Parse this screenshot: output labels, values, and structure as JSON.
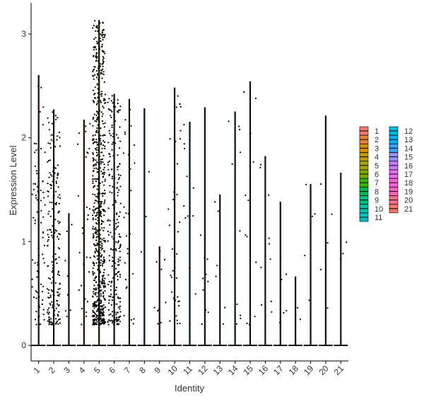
{
  "chart_data": {
    "type": "violin",
    "xlabel": "Identity",
    "ylabel": "Expression Level",
    "ylim": [
      -0.15,
      3.3
    ],
    "yticks": [
      0,
      1,
      2,
      3
    ],
    "grid": false,
    "legend_placement": "right",
    "categories": [
      "1",
      "2",
      "3",
      "4",
      "5",
      "6",
      "7",
      "8",
      "9",
      "10",
      "11",
      "12",
      "13",
      "14",
      "15",
      "16",
      "17",
      "18",
      "19",
      "20",
      "21"
    ],
    "max_expression": [
      2.6,
      2.27,
      1.27,
      2.17,
      3.13,
      2.42,
      2.37,
      2.28,
      0.95,
      2.48,
      2.15,
      2.29,
      1.45,
      2.25,
      2.54,
      1.82,
      1.38,
      0.66,
      1.55,
      2.21,
      1.66
    ],
    "expressing_cells": [
      80,
      200,
      8,
      30,
      700,
      220,
      28,
      3,
      10,
      40,
      12,
      10,
      6,
      10,
      12,
      10,
      6,
      2,
      6,
      5,
      3
    ],
    "colors": [
      "#F8766D",
      "#EA8331",
      "#D89000",
      "#C09B00",
      "#A3A500",
      "#7CAE00",
      "#39B600",
      "#00BB4E",
      "#00BF7D",
      "#00C1A3",
      "#00BFC4",
      "#00BAE0",
      "#00B0F6",
      "#35A2FF",
      "#9590FF",
      "#C77CFF",
      "#E76BF3",
      "#FA62DB",
      "#FF62BC",
      "#FF6C91",
      "#F8766D"
    ],
    "legend": [
      "1",
      "2",
      "3",
      "4",
      "5",
      "6",
      "7",
      "8",
      "9",
      "10",
      "11",
      "12",
      "13",
      "14",
      "15",
      "16",
      "17",
      "18",
      "19",
      "20",
      "21"
    ]
  }
}
